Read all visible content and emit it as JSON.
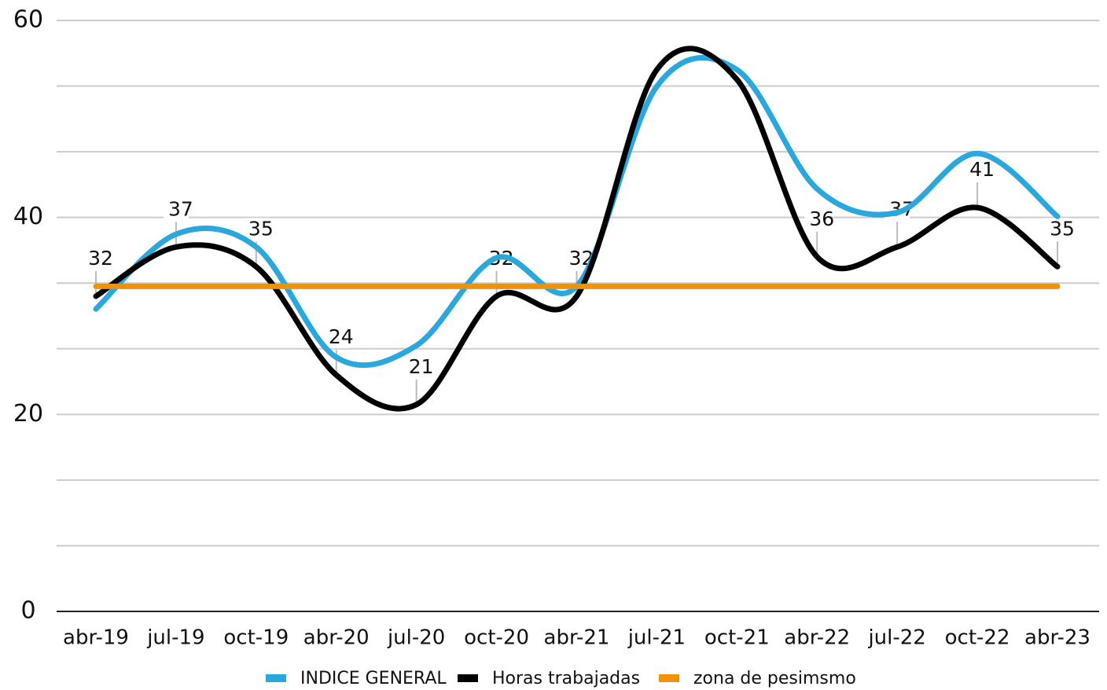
{
  "chart_data": {
    "type": "line",
    "categories": [
      "abr-19",
      "jul-19",
      "oct-19",
      "abr-20",
      "jul-20",
      "oct-20",
      "abr-21",
      "jul-21",
      "oct-21",
      "abr-22",
      "jul-22",
      "oct-22",
      "abr-23"
    ],
    "series": [
      {
        "name": "INDICE GENERAL",
        "color": "#2aa7dc",
        "smooth": true,
        "values": [
          30.7,
          38.3,
          37,
          25.8,
          27,
          35.9,
          33,
          53.3,
          55,
          42.9,
          40.5,
          46.5,
          40.1
        ]
      },
      {
        "name": "Horas trabajadas",
        "color": "#000000",
        "smooth": true,
        "values": [
          32,
          37,
          35,
          24,
          21,
          32,
          32,
          55,
          54,
          36,
          37,
          41,
          35
        ],
        "value_labels": [
          "32",
          "37",
          "35",
          "24",
          "21",
          "32",
          "32",
          null,
          null,
          "36",
          "37",
          "41",
          "35"
        ]
      },
      {
        "name": "zona de pesimsmo",
        "color": "#f39200",
        "smooth": false,
        "values": [
          33,
          33,
          33,
          33,
          33,
          33,
          33,
          33,
          33,
          33,
          33,
          33,
          33
        ]
      }
    ],
    "ylim": [
      0,
      60
    ],
    "yticks": [
      0,
      20,
      40,
      60
    ],
    "grid": true,
    "legend": "bottom"
  }
}
